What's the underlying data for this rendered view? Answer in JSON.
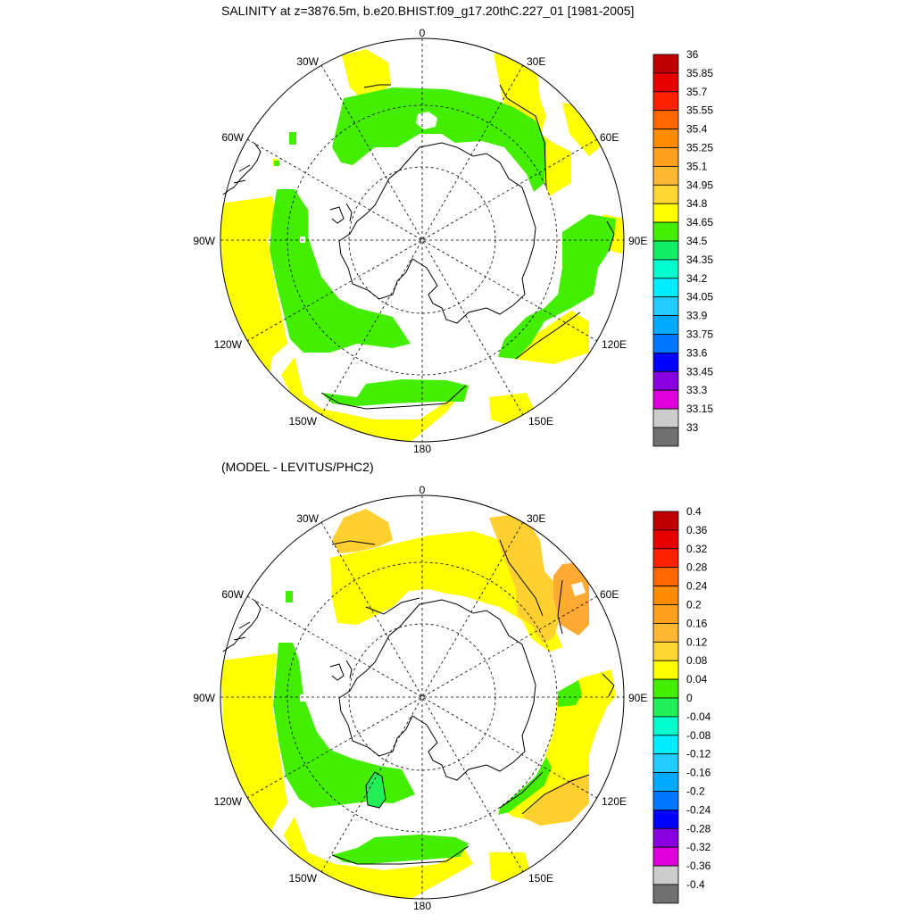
{
  "figure": {
    "title": "SALINITY at z=3876.5m, b.e20.BHIST.f09_g17.20thC.227_01 [1981-2005]",
    "subtitle": "(MODEL - LEVITUS/PHC2)"
  },
  "map_labels": {
    "n0": "0",
    "n30e": "30E",
    "n60e": "60E",
    "n90e": "90E",
    "n120e": "120E",
    "n150e": "150E",
    "n180": "180",
    "n150w": "150W",
    "n120w": "120W",
    "n90w": "90W",
    "n60w": "60W",
    "n30w": "30W"
  },
  "colors": {
    "yellow": "#ffff00",
    "green": "#44ee00",
    "green2": "#22ee55",
    "orange_light": "#ffd030",
    "orange_mid": "#ffaa33"
  },
  "colorbar_top": {
    "labels": [
      "36",
      "35.85",
      "35.7",
      "35.55",
      "35.4",
      "35.25",
      "35.1",
      "34.95",
      "34.8",
      "34.65",
      "34.5",
      "34.35",
      "34.2",
      "34.05",
      "33.9",
      "33.75",
      "33.6",
      "33.45",
      "33.3",
      "33.15",
      "33"
    ],
    "colors": [
      "#c00000",
      "#e80000",
      "#ff2200",
      "#ff6600",
      "#ff8c00",
      "#ffa020",
      "#ffb833",
      "#ffd633",
      "#ffff00",
      "#44ee00",
      "#11ee66",
      "#00ffcc",
      "#00eeff",
      "#22ccff",
      "#00aaff",
      "#0077ff",
      "#0000ff",
      "#8800dd",
      "#dd00dd",
      "#cccccc",
      "#707070"
    ]
  },
  "colorbar_bottom": {
    "labels": [
      "0.4",
      "0.36",
      "0.32",
      "0.28",
      "0.24",
      "0.2",
      "0.16",
      "0.12",
      "0.08",
      "0.04",
      "0",
      "-0.04",
      "-0.08",
      "-0.12",
      "-0.16",
      "-0.2",
      "-0.24",
      "-0.28",
      "-0.32",
      "-0.36",
      "-0.4"
    ],
    "colors": [
      "#c00000",
      "#e80000",
      "#ff2200",
      "#ff6600",
      "#ff8c00",
      "#ffa020",
      "#ffb833",
      "#ffd633",
      "#ffff00",
      "#44ee00",
      "#22ee55",
      "#00ffcc",
      "#00eeff",
      "#22ccff",
      "#00aaff",
      "#0077ff",
      "#0000ff",
      "#8800dd",
      "#dd00dd",
      "#cccccc",
      "#707070"
    ]
  }
}
